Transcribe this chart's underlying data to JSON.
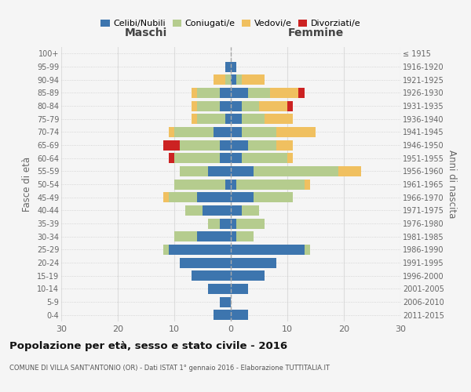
{
  "age_groups": [
    "0-4",
    "5-9",
    "10-14",
    "15-19",
    "20-24",
    "25-29",
    "30-34",
    "35-39",
    "40-44",
    "45-49",
    "50-54",
    "55-59",
    "60-64",
    "65-69",
    "70-74",
    "75-79",
    "80-84",
    "85-89",
    "90-94",
    "95-99",
    "100+"
  ],
  "birth_years": [
    "2011-2015",
    "2006-2010",
    "2001-2005",
    "1996-2000",
    "1991-1995",
    "1986-1990",
    "1981-1985",
    "1976-1980",
    "1971-1975",
    "1966-1970",
    "1961-1965",
    "1956-1960",
    "1951-1955",
    "1946-1950",
    "1941-1945",
    "1936-1940",
    "1931-1935",
    "1926-1930",
    "1921-1925",
    "1916-1920",
    "≤ 1915"
  ],
  "male_celibi": [
    3,
    2,
    4,
    7,
    9,
    11,
    6,
    2,
    5,
    6,
    1,
    4,
    2,
    2,
    3,
    1,
    2,
    2,
    0,
    1,
    0
  ],
  "male_coniugati": [
    0,
    0,
    0,
    0,
    0,
    1,
    4,
    2,
    3,
    5,
    9,
    5,
    8,
    7,
    7,
    5,
    4,
    4,
    1,
    0,
    0
  ],
  "male_vedovi": [
    0,
    0,
    0,
    0,
    0,
    0,
    0,
    0,
    0,
    1,
    0,
    0,
    0,
    0,
    1,
    1,
    1,
    1,
    2,
    0,
    0
  ],
  "male_divorziati": [
    0,
    0,
    0,
    0,
    0,
    0,
    0,
    0,
    0,
    0,
    0,
    0,
    1,
    3,
    0,
    0,
    0,
    0,
    0,
    0,
    0
  ],
  "female_celibi": [
    3,
    0,
    3,
    6,
    8,
    13,
    1,
    1,
    2,
    4,
    1,
    4,
    2,
    3,
    2,
    2,
    2,
    3,
    1,
    1,
    0
  ],
  "female_coniugati": [
    0,
    0,
    0,
    0,
    0,
    1,
    3,
    5,
    3,
    7,
    12,
    15,
    8,
    5,
    6,
    4,
    3,
    4,
    1,
    0,
    0
  ],
  "female_vedovi": [
    0,
    0,
    0,
    0,
    0,
    0,
    0,
    0,
    0,
    0,
    1,
    4,
    1,
    3,
    7,
    5,
    5,
    5,
    4,
    0,
    0
  ],
  "female_divorziati": [
    0,
    0,
    0,
    0,
    0,
    0,
    0,
    0,
    0,
    0,
    0,
    0,
    0,
    0,
    0,
    0,
    1,
    1,
    0,
    0,
    0
  ],
  "color_celibi": "#3d75ae",
  "color_coniugati": "#b5cc8e",
  "color_vedovi": "#f0c060",
  "color_divorziati": "#cc2222",
  "title": "Popolazione per età, sesso e stato civile - 2016",
  "subtitle": "COMUNE DI VILLA SANT'ANTONIO (OR) - Dati ISTAT 1° gennaio 2016 - Elaborazione TUTTITALIA.IT",
  "xlabel_left": "Maschi",
  "xlabel_right": "Femmine",
  "ylabel_left": "Fasce di età",
  "ylabel_right": "Anni di nascita",
  "xlim": 30,
  "background_color": "#f5f5f5",
  "grid_color": "#dddddd"
}
